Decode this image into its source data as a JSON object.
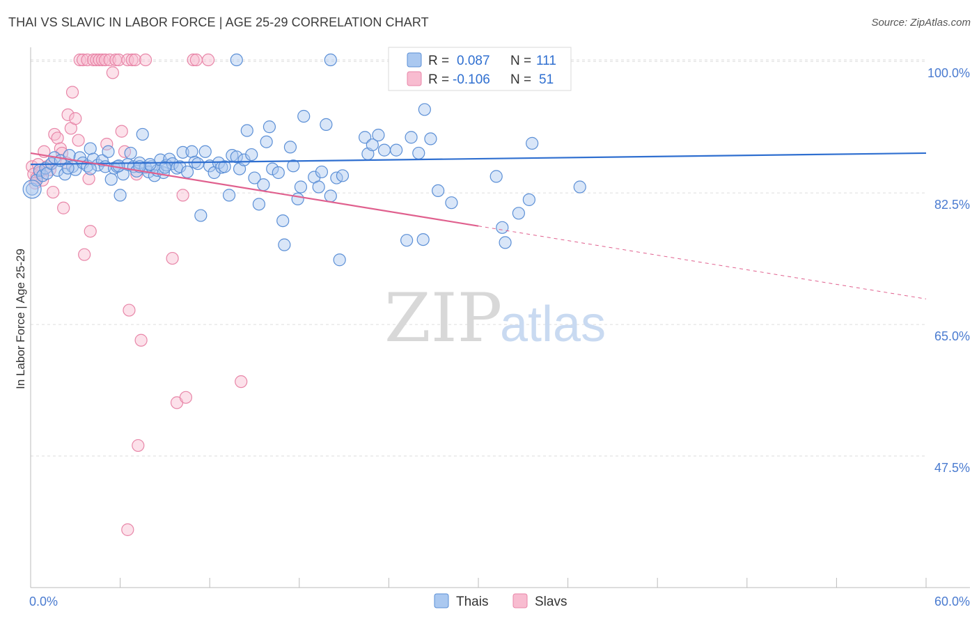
{
  "title": "THAI VS SLAVIC IN LABOR FORCE | AGE 25-29 CORRELATION CHART",
  "source": "Source: ZipAtlas.com",
  "watermark": {
    "zip": "ZIP",
    "atlas": "atlas"
  },
  "colors": {
    "thais_fill": "#aac8f0",
    "thais_stroke": "#5b8fd6",
    "thais_line": "#2f6fd0",
    "slavs_fill": "#f8bcd0",
    "slavs_stroke": "#e886a8",
    "slavs_line": "#e0608e",
    "grid": "#dddddd",
    "tick_label": "#4a7bd0"
  },
  "stats": [
    {
      "r_label": "R =",
      "r_value": "0.087",
      "n_label": "N =",
      "n_value": "111"
    },
    {
      "r_label": "R =",
      "r_value": "-0.106",
      "n_label": "N =",
      "n_value": "51"
    }
  ],
  "chart_data": {
    "type": "scatter",
    "title": "THAI VS SLAVIC IN LABOR FORCE | AGE 25-29 CORRELATION CHART",
    "xlabel": "",
    "ylabel": "In Labor Force | Age 25-29",
    "xlim": [
      0,
      60
    ],
    "ylim": [
      30,
      101.5
    ],
    "x_tick_labels": [
      "0.0%",
      "60.0%"
    ],
    "y_ticks": [
      47.5,
      65.0,
      82.5,
      100.0
    ],
    "y_tick_labels": [
      "47.5%",
      "65.0%",
      "82.5%",
      "100.0%"
    ],
    "grid": true,
    "legend_position": "bottom-center",
    "series": [
      {
        "name": "Thais",
        "color": "#5b8fd6",
        "trend": {
          "x": [
            0,
            60
          ],
          "y": [
            86.3,
            87.8
          ]
        },
        "points": [
          [
            0.1,
            83.0
          ],
          [
            0.4,
            84.2
          ],
          [
            0.6,
            85.5
          ],
          [
            0.8,
            84.8
          ],
          [
            1.0,
            85.8
          ],
          [
            1.1,
            85.1
          ],
          [
            1.4,
            86.4
          ],
          [
            1.6,
            87.2
          ],
          [
            1.8,
            85.5
          ],
          [
            2.0,
            86.8
          ],
          [
            2.3,
            85.0
          ],
          [
            2.6,
            87.5
          ],
          [
            2.8,
            86.0
          ],
          [
            3.0,
            85.6
          ],
          [
            3.3,
            87.2
          ],
          [
            3.5,
            86.5
          ],
          [
            3.8,
            86.1
          ],
          [
            4.0,
            88.4
          ],
          [
            4.2,
            87.0
          ],
          [
            4.5,
            86.2
          ],
          [
            4.8,
            86.8
          ],
          [
            5.0,
            86.0
          ],
          [
            5.2,
            88.0
          ],
          [
            5.4,
            84.3
          ],
          [
            5.6,
            85.8
          ],
          [
            5.8,
            86.0
          ],
          [
            6.0,
            82.2
          ],
          [
            6.2,
            85.0
          ],
          [
            6.5,
            86.3
          ],
          [
            6.7,
            87.8
          ],
          [
            6.9,
            86.0
          ],
          [
            7.1,
            85.4
          ],
          [
            7.3,
            86.5
          ],
          [
            7.5,
            90.3
          ],
          [
            7.7,
            85.9
          ],
          [
            7.9,
            85.3
          ],
          [
            8.1,
            86.0
          ],
          [
            8.3,
            84.8
          ],
          [
            8.5,
            85.5
          ],
          [
            8.7,
            86.9
          ],
          [
            8.9,
            85.2
          ],
          [
            9.1,
            86.2
          ],
          [
            9.3,
            87.0
          ],
          [
            9.5,
            86.4
          ],
          [
            9.8,
            85.8
          ],
          [
            10.0,
            86.0
          ],
          [
            10.2,
            87.9
          ],
          [
            10.5,
            85.3
          ],
          [
            10.8,
            88.0
          ],
          [
            11.0,
            86.6
          ],
          [
            11.2,
            86.4
          ],
          [
            11.4,
            79.5
          ],
          [
            11.7,
            88.0
          ],
          [
            12.0,
            86.1
          ],
          [
            12.3,
            85.2
          ],
          [
            12.6,
            86.5
          ],
          [
            12.8,
            85.9
          ],
          [
            13.0,
            86.0
          ],
          [
            13.3,
            82.2
          ],
          [
            13.5,
            87.5
          ],
          [
            13.8,
            87.3
          ],
          [
            14.0,
            85.7
          ],
          [
            14.3,
            86.9
          ],
          [
            14.5,
            90.8
          ],
          [
            14.8,
            87.6
          ],
          [
            15.0,
            84.5
          ],
          [
            15.3,
            81.0
          ],
          [
            15.6,
            83.6
          ],
          [
            15.8,
            89.3
          ],
          [
            16.0,
            91.3
          ],
          [
            16.2,
            85.7
          ],
          [
            16.6,
            85.2
          ],
          [
            16.9,
            78.8
          ],
          [
            17.0,
            75.6
          ],
          [
            17.4,
            88.6
          ],
          [
            17.6,
            86.1
          ],
          [
            17.9,
            81.7
          ],
          [
            18.1,
            83.3
          ],
          [
            18.3,
            92.7
          ],
          [
            19.0,
            84.6
          ],
          [
            19.3,
            83.3
          ],
          [
            19.5,
            85.3
          ],
          [
            19.8,
            91.6
          ],
          [
            20.1,
            82.1
          ],
          [
            20.5,
            84.5
          ],
          [
            20.7,
            73.6
          ],
          [
            20.9,
            84.8
          ],
          [
            22.4,
            89.9
          ],
          [
            22.6,
            87.7
          ],
          [
            22.9,
            88.9
          ],
          [
            23.3,
            90.2
          ],
          [
            23.7,
            88.2
          ],
          [
            24.5,
            88.2
          ],
          [
            25.5,
            89.9
          ],
          [
            26.0,
            87.8
          ],
          [
            26.4,
            93.6
          ],
          [
            26.8,
            89.7
          ],
          [
            25.2,
            76.2
          ],
          [
            26.3,
            76.3
          ],
          [
            27.3,
            82.8
          ],
          [
            28.2,
            81.2
          ],
          [
            31.2,
            84.7
          ],
          [
            32.7,
            79.8
          ],
          [
            33.6,
            89.1
          ],
          [
            31.6,
            77.9
          ],
          [
            33.4,
            81.6
          ],
          [
            31.8,
            75.9
          ],
          [
            36.8,
            83.3
          ],
          [
            8.0,
            86.3
          ],
          [
            20.1,
            100.2
          ],
          [
            13.8,
            100.2
          ],
          [
            24.5,
            100.2
          ],
          [
            24.8,
            100.2
          ],
          [
            7.3,
            86.0
          ],
          [
            9.0,
            85.9
          ],
          [
            5.9,
            86.1
          ],
          [
            4.0,
            85.7
          ],
          [
            2.5,
            85.8
          ]
        ]
      },
      {
        "name": "Slavs",
        "color": "#e886a8",
        "trend": {
          "x": [
            0,
            30
          ],
          "y": [
            87.8,
            78.1
          ]
        },
        "trend_dashed": {
          "x": [
            30,
            60
          ],
          "y": [
            78.1,
            68.4
          ]
        },
        "points": [
          [
            0.1,
            86.0
          ],
          [
            0.2,
            85.0
          ],
          [
            0.4,
            84.5
          ],
          [
            0.5,
            86.3
          ],
          [
            0.6,
            85.2
          ],
          [
            0.8,
            84.2
          ],
          [
            0.9,
            88.0
          ],
          [
            1.1,
            86.0
          ],
          [
            1.3,
            85.6
          ],
          [
            1.5,
            82.6
          ],
          [
            1.6,
            90.3
          ],
          [
            1.8,
            89.8
          ],
          [
            2.0,
            88.4
          ],
          [
            2.1,
            87.8
          ],
          [
            2.2,
            80.5
          ],
          [
            2.4,
            86.5
          ],
          [
            2.5,
            92.9
          ],
          [
            2.7,
            91.1
          ],
          [
            2.8,
            95.9
          ],
          [
            3.0,
            92.4
          ],
          [
            3.2,
            89.5
          ],
          [
            3.3,
            100.2
          ],
          [
            3.5,
            100.2
          ],
          [
            3.8,
            100.2
          ],
          [
            3.9,
            84.4
          ],
          [
            4.0,
            77.4
          ],
          [
            4.2,
            100.2
          ],
          [
            4.4,
            100.2
          ],
          [
            4.6,
            100.2
          ],
          [
            4.8,
            100.2
          ],
          [
            5.0,
            100.2
          ],
          [
            5.1,
            89.0
          ],
          [
            5.3,
            100.2
          ],
          [
            5.5,
            98.5
          ],
          [
            5.7,
            100.2
          ],
          [
            5.9,
            100.2
          ],
          [
            6.1,
            90.7
          ],
          [
            6.3,
            88.0
          ],
          [
            6.5,
            100.2
          ],
          [
            6.6,
            66.9
          ],
          [
            6.8,
            100.2
          ],
          [
            7.0,
            100.2
          ],
          [
            7.1,
            85.0
          ],
          [
            7.7,
            100.2
          ],
          [
            3.6,
            74.3
          ],
          [
            7.4,
            62.9
          ],
          [
            9.5,
            73.8
          ],
          [
            9.8,
            54.6
          ],
          [
            10.2,
            82.2
          ],
          [
            10.4,
            55.3
          ],
          [
            10.9,
            100.2
          ],
          [
            11.1,
            100.2
          ],
          [
            11.9,
            100.2
          ],
          [
            14.1,
            57.4
          ],
          [
            7.2,
            48.9
          ],
          [
            6.5,
            37.7
          ],
          [
            1.4,
            86.4
          ],
          [
            0.3,
            83.8
          ]
        ]
      }
    ]
  }
}
